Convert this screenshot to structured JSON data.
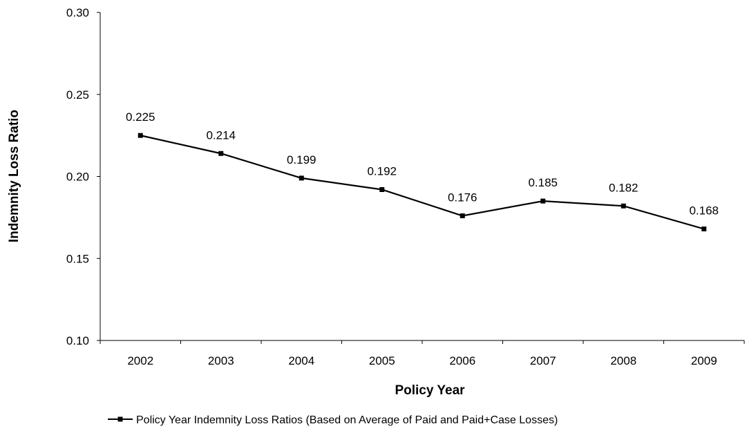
{
  "chart_data": {
    "type": "line",
    "title": "",
    "xlabel": "Policy Year",
    "ylabel": "Indemnity Loss Ratio",
    "categories": [
      "2002",
      "2003",
      "2004",
      "2005",
      "2006",
      "2007",
      "2008",
      "2009"
    ],
    "series": [
      {
        "name": "Policy Year Indemnity Loss Ratios (Based on Average of Paid and Paid+Case Losses)",
        "values": [
          0.225,
          0.214,
          0.199,
          0.192,
          0.176,
          0.185,
          0.182,
          0.168
        ],
        "data_labels": [
          "0.225",
          "0.214",
          "0.199",
          "0.192",
          "0.176",
          "0.185",
          "0.182",
          "0.168"
        ],
        "color": "#000000",
        "marker": "square"
      }
    ],
    "ylim": [
      0.1,
      0.3
    ],
    "yticks": [
      0.1,
      0.15,
      0.2,
      0.25,
      0.3
    ],
    "ytick_labels": [
      "0.10",
      "0.15",
      "0.20",
      "0.25",
      "0.30"
    ],
    "grid": false,
    "legend_position": "bottom"
  }
}
